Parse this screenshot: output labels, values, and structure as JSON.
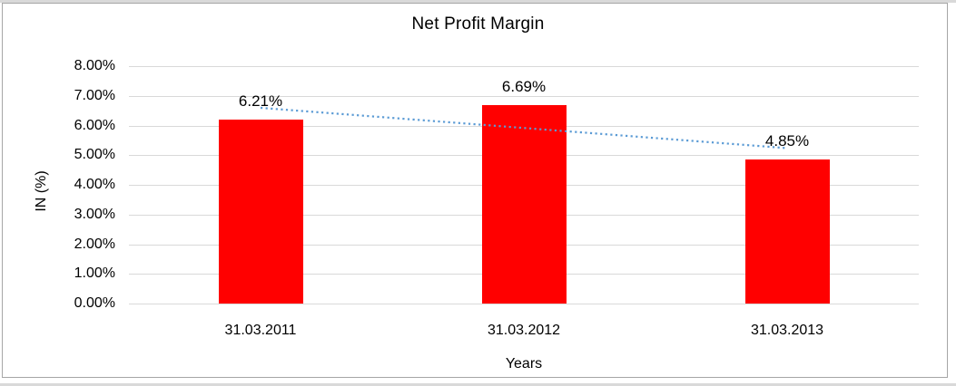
{
  "window": {
    "background": "#ffffff",
    "frame_border_color": "#a6a6a6",
    "edge_strip_color": "#d9d9d9"
  },
  "chart_data": {
    "type": "bar",
    "title": "Net Profit Margin",
    "xlabel": "Years",
    "ylabel": "IN (%)",
    "categories": [
      "31.03.2011",
      "31.03.2012",
      "31.03.2013"
    ],
    "series": [
      {
        "name": "Net Profit Margin",
        "values": [
          6.21,
          6.69,
          4.85
        ],
        "color": "#ff0000"
      }
    ],
    "data_labels": [
      "6.21%",
      "6.69%",
      "4.85%"
    ],
    "ylim": [
      0,
      8
    ],
    "ytick_step": 1,
    "ytick_labels": [
      "0.00%",
      "1.00%",
      "2.00%",
      "3.00%",
      "4.00%",
      "5.00%",
      "6.00%",
      "7.00%",
      "8.00%"
    ],
    "grid": true,
    "gridline_color": "#d9d9d9",
    "legend": "none",
    "text_color": "#000000",
    "trendline": {
      "type": "linear",
      "style": "dotted",
      "color": "#5b9bd5"
    }
  }
}
